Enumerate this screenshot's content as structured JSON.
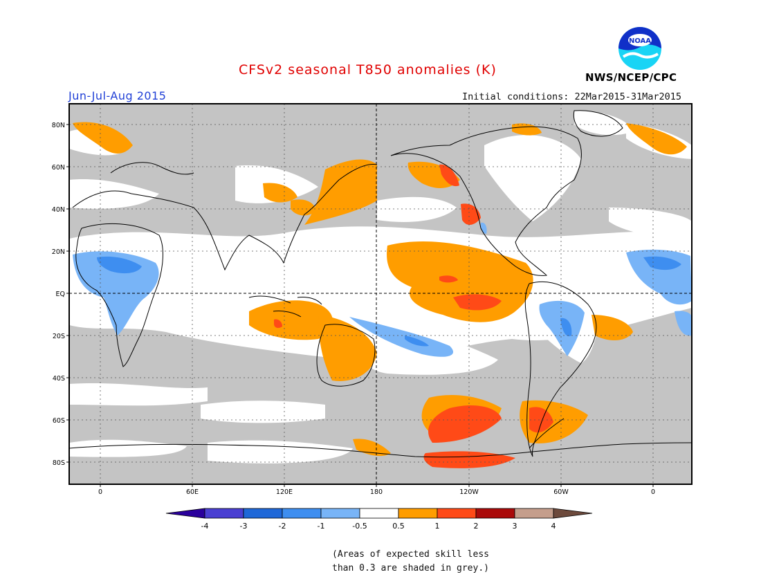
{
  "header": {
    "title": "CFSv2 seasonal T850 anomalies (K)",
    "period": "Jun-Jul-Aug 2015",
    "initial_conditions": "Initial conditions: 22Mar2015-31Mar2015",
    "organization": "NWS/NCEP/CPC",
    "logo_text": "NOAA",
    "logo_icon": "noaa-logo-icon"
  },
  "axes": {
    "lat_ticks": [
      "80N",
      "60N",
      "40N",
      "20N",
      "EQ",
      "20S",
      "40S",
      "60S",
      "80S"
    ],
    "lon_ticks": [
      "0",
      "60E",
      "120E",
      "180",
      "120W",
      "60W",
      "0"
    ]
  },
  "legend": {
    "ticks": [
      "-4",
      "-3",
      "-2",
      "-1",
      "-0.5",
      "0.5",
      "1",
      "2",
      "3",
      "4"
    ],
    "colors": [
      "#2a009c",
      "#4a3fd2",
      "#1f68d8",
      "#3e8ef0",
      "#78b4f7",
      "#ffffff",
      "#ff9d00",
      "#ff4a17",
      "#aa0a0a",
      "#c59e8c",
      "#6d4a3c"
    ]
  },
  "footnote": {
    "line1": "(Areas of expected skill less",
    "line2": "than 0.3 are shaded in grey.)"
  },
  "colors": {
    "skill_grey": "#c4c4c4",
    "title_red": "#e00000",
    "period_blue": "#1f3fd6",
    "noaa_blue": "#1030c8",
    "noaa_cyan": "#19d4f5"
  }
}
